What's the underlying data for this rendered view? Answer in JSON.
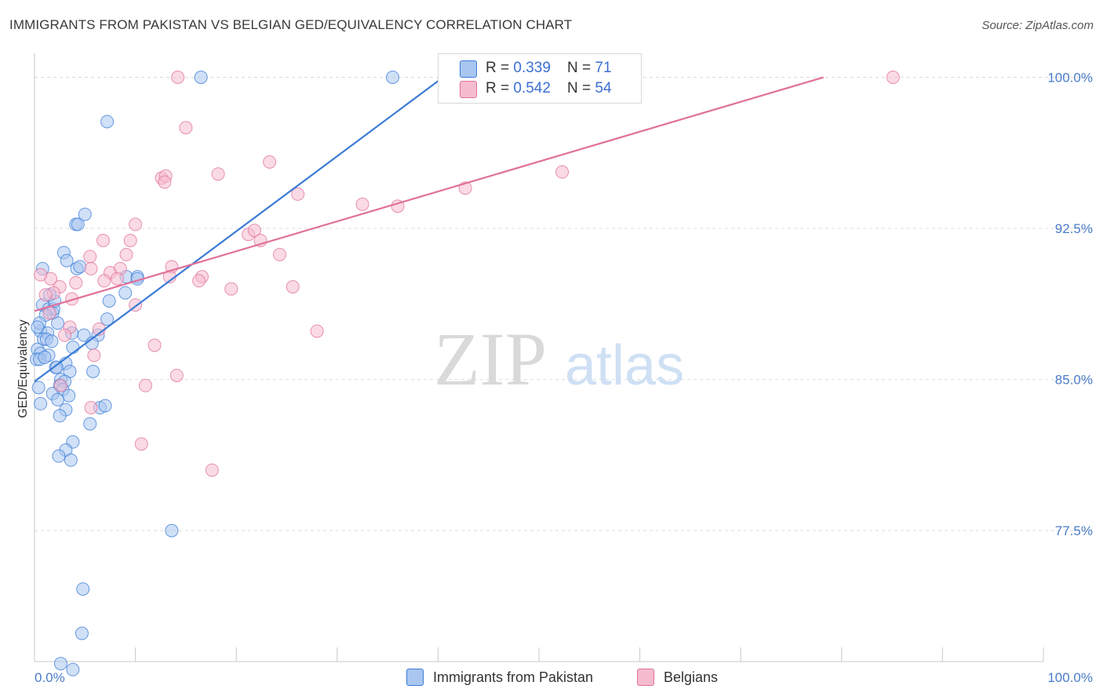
{
  "header": {
    "title": "IMMIGRANTS FROM PAKISTAN VS BELGIAN GED/EQUIVALENCY CORRELATION CHART",
    "source": "Source: ZipAtlas.com"
  },
  "watermark": {
    "zip": "ZIP",
    "atlas": "atlas"
  },
  "colors": {
    "blue": "#3a7bd5",
    "blue_fill": "#a9c6f0",
    "pink": "#e0709a",
    "pink_fill": "#f5bcd0",
    "axis_label": "#4a7cc9"
  },
  "legend": {
    "rows": [
      {
        "r_label": "R = ",
        "r_value": "0.339",
        "n_label": "N = ",
        "n_value": "71"
      },
      {
        "r_label": "R = ",
        "r_value": "0.542",
        "n_label": "N = ",
        "n_value": "54"
      }
    ]
  },
  "bottom_legend": {
    "items": [
      {
        "label": "Immigrants from Pakistan"
      },
      {
        "label": "Belgians"
      }
    ]
  },
  "chart_data": {
    "type": "scatter",
    "title": "IMMIGRANTS FROM PAKISTAN VS BELGIAN GED/EQUIVALENCY CORRELATION CHART",
    "xlabel": "",
    "ylabel": "GED/Equivalency",
    "xlim": [
      0,
      100
    ],
    "ylim": [
      71.0,
      101.5
    ],
    "x_tick_labels": [
      "0.0%",
      "100.0%"
    ],
    "y_ticks": [
      77.5,
      85.0,
      92.5,
      100.0
    ],
    "y_tick_labels": [
      "77.5%",
      "85.0%",
      "92.5%",
      "100.0%"
    ],
    "grid": true,
    "series": [
      {
        "name": "Immigrants from Pakistan",
        "color": "#3a7bd5",
        "r": 0.339,
        "n": 71,
        "trend": {
          "x": [
            0,
            40.5
          ],
          "y": [
            84.9,
            100.0
          ]
        },
        "points": [
          [
            16.5,
            100.0
          ],
          [
            35.5,
            100.0
          ],
          [
            7.2,
            97.8
          ],
          [
            5.0,
            93.2
          ],
          [
            4.1,
            92.7
          ],
          [
            4.3,
            92.7
          ],
          [
            2.9,
            91.3
          ],
          [
            3.2,
            90.9
          ],
          [
            4.2,
            90.5
          ],
          [
            4.5,
            90.6
          ],
          [
            0.8,
            90.5
          ],
          [
            9.1,
            90.1
          ],
          [
            10.2,
            90.1
          ],
          [
            10.2,
            90.0
          ],
          [
            9.0,
            89.3
          ],
          [
            7.4,
            88.9
          ],
          [
            0.8,
            88.7
          ],
          [
            1.8,
            88.3
          ],
          [
            1.4,
            88.5
          ],
          [
            1.9,
            88.5
          ],
          [
            1.1,
            88.2
          ],
          [
            2.3,
            87.8
          ],
          [
            7.2,
            88.0
          ],
          [
            0.6,
            87.4
          ],
          [
            1.3,
            87.3
          ],
          [
            3.7,
            87.3
          ],
          [
            4.9,
            87.2
          ],
          [
            6.3,
            87.2
          ],
          [
            0.9,
            87.0
          ],
          [
            1.2,
            87.0
          ],
          [
            1.7,
            86.9
          ],
          [
            5.7,
            86.8
          ],
          [
            3.8,
            86.6
          ],
          [
            0.3,
            86.5
          ],
          [
            0.6,
            86.3
          ],
          [
            1.4,
            86.2
          ],
          [
            0.2,
            86.0
          ],
          [
            0.5,
            86.0
          ],
          [
            3.1,
            85.8
          ],
          [
            2.1,
            85.6
          ],
          [
            2.2,
            85.6
          ],
          [
            3.5,
            85.4
          ],
          [
            5.8,
            85.4
          ],
          [
            2.6,
            85.0
          ],
          [
            3.0,
            84.9
          ],
          [
            2.5,
            84.7
          ],
          [
            0.4,
            84.6
          ],
          [
            2.8,
            84.5
          ],
          [
            1.8,
            84.3
          ],
          [
            3.4,
            84.2
          ],
          [
            2.3,
            84.0
          ],
          [
            0.6,
            83.8
          ],
          [
            6.5,
            83.6
          ],
          [
            7.0,
            83.7
          ],
          [
            3.1,
            83.5
          ],
          [
            2.5,
            83.2
          ],
          [
            5.5,
            82.8
          ],
          [
            3.8,
            81.9
          ],
          [
            3.1,
            81.5
          ],
          [
            2.4,
            81.2
          ],
          [
            3.6,
            81.0
          ],
          [
            13.6,
            77.5
          ],
          [
            4.8,
            74.6
          ],
          [
            4.7,
            72.4
          ],
          [
            2.6,
            70.9
          ],
          [
            3.8,
            70.6
          ],
          [
            2.0,
            88.9
          ],
          [
            0.5,
            87.8
          ],
          [
            1.5,
            89.2
          ],
          [
            0.3,
            87.6
          ],
          [
            1.0,
            86.1
          ]
        ]
      },
      {
        "name": "Belgians",
        "color": "#e0709a",
        "r": 0.542,
        "n": 54,
        "trend": {
          "x": [
            0,
            78.2
          ],
          "y": [
            88.4,
            100.0
          ]
        },
        "points": [
          [
            14.2,
            100.0
          ],
          [
            85.1,
            100.0
          ],
          [
            15.0,
            97.5
          ],
          [
            23.3,
            95.8
          ],
          [
            52.3,
            95.3
          ],
          [
            18.2,
            95.2
          ],
          [
            12.6,
            95.0
          ],
          [
            13.0,
            95.1
          ],
          [
            12.9,
            94.8
          ],
          [
            42.7,
            94.5
          ],
          [
            26.1,
            94.2
          ],
          [
            32.5,
            93.7
          ],
          [
            36.0,
            93.6
          ],
          [
            10.0,
            92.7
          ],
          [
            21.2,
            92.2
          ],
          [
            21.8,
            92.4
          ],
          [
            9.5,
            91.9
          ],
          [
            22.4,
            91.9
          ],
          [
            6.8,
            91.9
          ],
          [
            9.1,
            91.2
          ],
          [
            24.3,
            91.2
          ],
          [
            5.5,
            91.1
          ],
          [
            13.6,
            90.6
          ],
          [
            8.5,
            90.5
          ],
          [
            7.5,
            90.3
          ],
          [
            5.6,
            90.5
          ],
          [
            8.2,
            90.0
          ],
          [
            13.4,
            90.1
          ],
          [
            16.6,
            90.1
          ],
          [
            16.3,
            89.9
          ],
          [
            6.9,
            89.9
          ],
          [
            1.6,
            90.0
          ],
          [
            4.1,
            89.8
          ],
          [
            19.5,
            89.5
          ],
          [
            25.6,
            89.6
          ],
          [
            2.5,
            89.6
          ],
          [
            1.9,
            89.3
          ],
          [
            3.7,
            89.0
          ],
          [
            1.1,
            89.2
          ],
          [
            0.6,
            90.2
          ],
          [
            10.0,
            88.7
          ],
          [
            3.5,
            87.6
          ],
          [
            6.4,
            87.5
          ],
          [
            28.0,
            87.4
          ],
          [
            3.0,
            87.2
          ],
          [
            11.9,
            86.7
          ],
          [
            5.9,
            86.2
          ],
          [
            14.1,
            85.2
          ],
          [
            11.0,
            84.7
          ],
          [
            2.6,
            84.7
          ],
          [
            5.6,
            83.6
          ],
          [
            10.6,
            81.8
          ],
          [
            17.6,
            80.5
          ],
          [
            1.5,
            88.3
          ]
        ]
      }
    ]
  }
}
